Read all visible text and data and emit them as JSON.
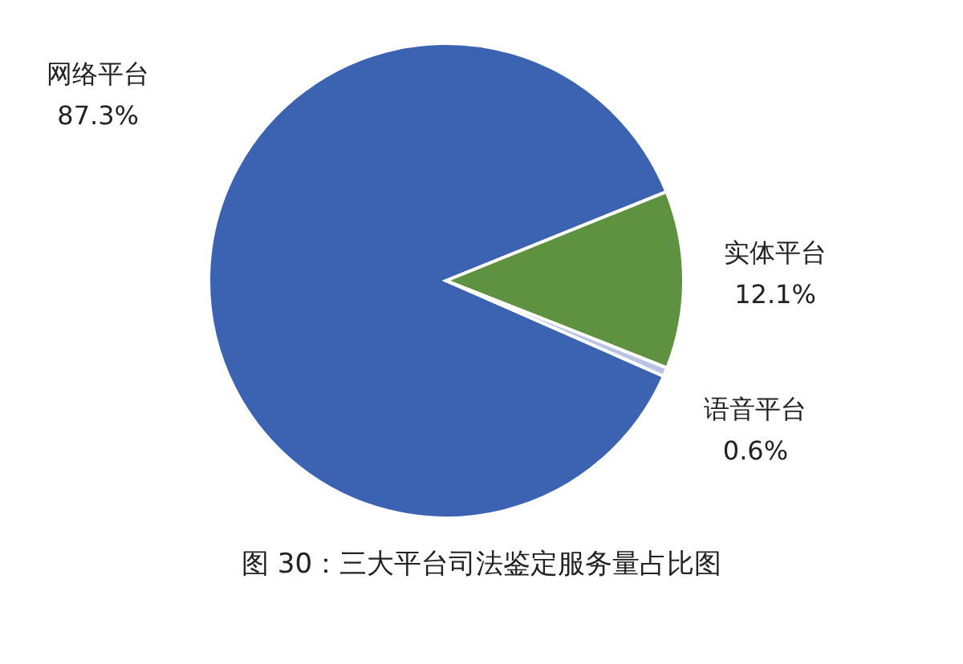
{
  "chart_data": {
    "type": "pie",
    "title": "图 30：三大平台司法鉴定服务量占比图",
    "categories": [
      "网络平台",
      "实体平台",
      "语音平台"
    ],
    "values": [
      87.3,
      12.1,
      0.6
    ],
    "colors": [
      "#3b63b1",
      "#5e9140",
      "#b8c3e6"
    ],
    "value_labels": [
      "87.3%",
      "12.1%",
      "0.6%"
    ]
  }
}
